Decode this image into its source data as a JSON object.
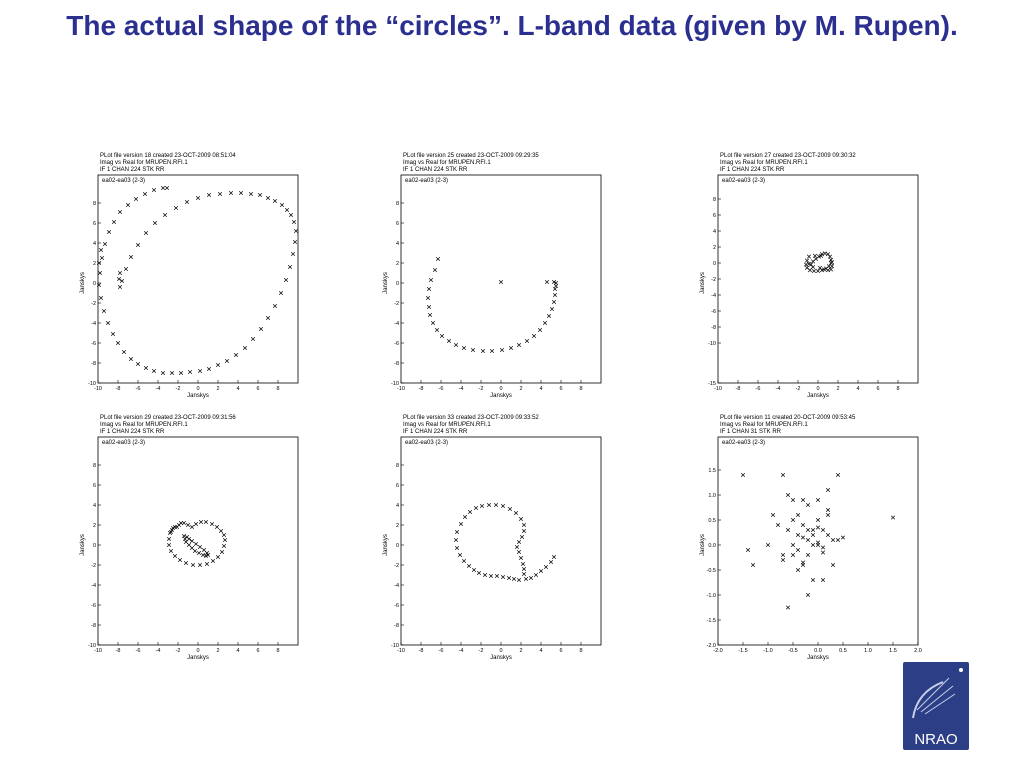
{
  "slide": {
    "title": "The actual shape of the “circles”. L-band data (given by M. Rupen)."
  },
  "logo": {
    "text": "NRAO",
    "colors": {
      "bg": "#2c3f86",
      "star": "#ffffff"
    }
  },
  "chart_data": [
    {
      "type": "scatter",
      "header": [
        "PLot file version 18  created 23-OCT-2009 08:51:04",
        "Imag vs Real  for  MRUPEN.RFI.1",
        "IF 1   CHAN 224   STK RR"
      ],
      "baseline": "ea02-ea03 (2-3)",
      "xlabel": "Janskys",
      "ylabel": "Janskys",
      "xlim": [
        -10,
        10
      ],
      "ylim": [
        -10,
        10
      ],
      "xticks": [
        -10,
        -8,
        -6,
        -4,
        -2,
        0,
        2,
        4,
        6,
        8
      ],
      "yticks": [
        8,
        6,
        4,
        2,
        0,
        -2,
        -4,
        -6,
        -8,
        -10
      ],
      "x": [
        -9.8,
        -9.9,
        -9.7,
        -9.4,
        -9.0,
        -8.5,
        -8.0,
        -7.4,
        -6.7,
        -6.0,
        -5.2,
        -4.4,
        -3.5,
        -2.6,
        -1.7,
        -0.8,
        0.2,
        1.1,
        2.0,
        2.9,
        3.8,
        4.7,
        5.5,
        6.3,
        7.0,
        7.7,
        8.3,
        8.8,
        9.2,
        9.5,
        9.7,
        9.8,
        9.6,
        9.3,
        8.9,
        8.4,
        7.7,
        7.0,
        6.2,
        5.3,
        4.3,
        3.3,
        2.2,
        1.1,
        0.0,
        -1.1,
        -2.2,
        -3.3,
        -4.3,
        -5.2,
        -6.0,
        -6.7,
        -7.2,
        -7.6,
        -7.8,
        -7.9,
        -7.8,
        -9.6,
        -9.3,
        -8.9,
        -8.4,
        -7.8,
        -7.0,
        -6.2,
        -5.3,
        -4.4,
        -3.5,
        -3.1,
        -9.7,
        -9.9
      ],
      "y": [
        1.0,
        -0.2,
        -1.5,
        -2.8,
        -4.0,
        -5.1,
        -6.0,
        -6.9,
        -7.6,
        -8.1,
        -8.5,
        -8.8,
        -9.0,
        -9.0,
        -9.0,
        -8.9,
        -8.8,
        -8.6,
        -8.2,
        -7.8,
        -7.2,
        -6.5,
        -5.6,
        -4.6,
        -3.5,
        -2.3,
        -1.0,
        0.3,
        1.6,
        2.9,
        4.1,
        5.2,
        6.1,
        6.8,
        7.3,
        7.8,
        8.2,
        8.5,
        8.8,
        8.9,
        9.0,
        9.0,
        8.9,
        8.8,
        8.5,
        8.1,
        7.5,
        6.8,
        6.0,
        5.0,
        3.8,
        2.6,
        1.4,
        0.2,
        -0.4,
        0.4,
        1.0,
        2.5,
        3.9,
        5.1,
        6.1,
        7.1,
        7.8,
        8.4,
        8.9,
        9.3,
        9.5,
        9.5,
        3.3,
        2.0
      ]
    },
    {
      "type": "scatter",
      "header": [
        "PLot file version 25  created 23-OCT-2009 09:29:35",
        "Imag vs Real  for  MRUPEN.RFI.1",
        "IF 1   CHAN 224   STK RR"
      ],
      "baseline": "ea02-ea03 (2-3)",
      "xlabel": "Janskys",
      "ylabel": "Janskys",
      "xlim": [
        -10,
        10
      ],
      "ylim": [
        -10,
        10
      ],
      "xticks": [
        -10,
        -8,
        -6,
        -4,
        -2,
        0,
        2,
        4,
        6,
        8
      ],
      "yticks": [
        8,
        6,
        4,
        2,
        0,
        -2,
        -4,
        -6,
        -8,
        -10
      ],
      "x": [
        -6.3,
        -6.6,
        -7.0,
        -7.2,
        -7.3,
        -7.2,
        -7.1,
        -6.8,
        -6.4,
        -5.9,
        -5.2,
        -4.5,
        -3.7,
        -2.8,
        -1.8,
        -0.9,
        0.1,
        1.0,
        1.8,
        2.6,
        3.3,
        3.9,
        4.4,
        4.8,
        5.1,
        5.3,
        5.4,
        5.4,
        5.5,
        5.5,
        5.3,
        4.6,
        0.0
      ],
      "y": [
        2.4,
        1.3,
        0.3,
        -0.6,
        -1.5,
        -2.4,
        -3.2,
        -4.0,
        -4.7,
        -5.3,
        -5.8,
        -6.2,
        -6.5,
        -6.7,
        -6.8,
        -6.8,
        -6.7,
        -6.5,
        -6.2,
        -5.8,
        -5.3,
        -4.7,
        -4.0,
        -3.3,
        -2.6,
        -1.9,
        -1.2,
        -0.6,
        -0.3,
        0.0,
        0.1,
        0.1,
        0.1
      ]
    },
    {
      "type": "scatter",
      "header": [
        "PLot file version 27  created 23-OCT-2009 09:30:32",
        "Imag vs Real  for  MRUPEN.RFI.1",
        "IF 1   CHAN 224   STK RR"
      ],
      "baseline": "ea02-ea03 (2-3)",
      "xlabel": "Janskys",
      "ylabel": "Janskys",
      "xlim": [
        -10,
        10
      ],
      "ylim": [
        -15,
        10
      ],
      "xticks": [
        -10,
        -8,
        -6,
        -4,
        -2,
        0,
        2,
        4,
        6,
        8
      ],
      "yticks": [
        8,
        6,
        4,
        2,
        0,
        -2,
        -4,
        -6,
        -8,
        -10,
        -15
      ],
      "x": [
        -0.9,
        -1.1,
        -1.2,
        -1.1,
        -0.8,
        -0.4,
        0.0,
        0.4,
        0.8,
        1.1,
        1.3,
        1.3,
        1.2,
        1.0,
        0.7,
        0.4,
        0.1,
        -0.2,
        -0.5,
        -0.7,
        -0.5,
        0.2,
        0.6,
        1.0,
        1.3,
        1.4,
        1.4,
        -0.9,
        -0.3,
        0.3
      ],
      "y": [
        0.8,
        0.3,
        -0.2,
        -0.6,
        -0.9,
        -1.0,
        -1.0,
        -0.9,
        -0.7,
        -0.4,
        0.0,
        0.4,
        0.8,
        1.1,
        1.2,
        1.1,
        0.8,
        0.5,
        0.2,
        -0.2,
        -0.5,
        -0.6,
        -0.8,
        -0.9,
        -0.8,
        -0.4,
        0.1,
        -0.1,
        0.9,
        0.9
      ]
    },
    {
      "type": "scatter",
      "header": [
        "PLot file version 29  created 23-OCT-2009 09:31:56",
        "Imag vs Real  for  MRUPEN.RFI.1",
        "IF 1   CHAN 224   STK RR"
      ],
      "baseline": "ea02-ea03 (2-3)",
      "xlabel": "Janskys",
      "ylabel": "Janskys",
      "xlim": [
        -10,
        10
      ],
      "ylim": [
        -10,
        10
      ],
      "xticks": [
        -10,
        -8,
        -6,
        -4,
        -2,
        0,
        2,
        4,
        6,
        8
      ],
      "yticks": [
        8,
        6,
        4,
        2,
        0,
        -2,
        -4,
        -6,
        -8,
        -10
      ],
      "x": [
        -2.8,
        -2.9,
        -2.9,
        -2.7,
        -2.3,
        -1.8,
        -1.2,
        -0.5,
        0.2,
        0.9,
        1.5,
        2.0,
        2.4,
        2.6,
        2.7,
        2.6,
        2.3,
        1.9,
        1.4,
        0.8,
        0.3,
        -0.2,
        -0.6,
        -1.0,
        -1.4,
        -1.7,
        -1.9,
        -2.1,
        -2.3,
        -2.5,
        -2.6,
        -2.7,
        -1.4,
        -1.1,
        -0.9,
        -0.6,
        -0.2,
        0.2,
        0.6,
        0.9,
        1.0,
        0.8,
        0.5,
        0.1,
        -0.3,
        -0.6,
        -0.9,
        -1.2,
        -1.3
      ],
      "y": [
        1.2,
        0.6,
        0.0,
        -0.6,
        -1.1,
        -1.5,
        -1.8,
        -2.0,
        -2.0,
        -1.9,
        -1.6,
        -1.2,
        -0.7,
        -0.1,
        0.5,
        1.0,
        1.4,
        1.8,
        2.1,
        2.3,
        2.3,
        2.1,
        1.8,
        2.0,
        2.2,
        2.2,
        2.0,
        1.8,
        1.8,
        1.7,
        1.5,
        1.3,
        0.9,
        0.8,
        0.6,
        0.4,
        0.1,
        -0.2,
        -0.5,
        -0.8,
        -1.0,
        -1.1,
        -1.0,
        -0.8,
        -0.6,
        -0.3,
        0.0,
        0.3,
        0.6
      ]
    },
    {
      "type": "scatter",
      "header": [
        "PLot file version 33  created 23-OCT-2009 09:33:52",
        "Imag vs Real  for  MRUPEN.RFI.1",
        "IF 1   CHAN 224   STK RR"
      ],
      "baseline": "ea02-ea03 (2-3)",
      "xlabel": "Janskys",
      "ylabel": "Janskys",
      "xlim": [
        -10,
        10
      ],
      "ylim": [
        -10,
        10
      ],
      "xticks": [
        -10,
        -8,
        -6,
        -4,
        -2,
        0,
        2,
        4,
        6,
        8
      ],
      "yticks": [
        8,
        6,
        4,
        2,
        0,
        -2,
        -4,
        -6,
        -8,
        -10
      ],
      "x": [
        -4.0,
        -3.6,
        -3.1,
        -2.5,
        -1.9,
        -1.2,
        -0.5,
        0.2,
        0.9,
        1.5,
        2.0,
        2.3,
        2.3,
        2.1,
        1.8,
        1.6,
        1.8,
        2.0,
        2.2,
        2.3,
        2.3,
        2.5,
        3.0,
        3.5,
        4.0,
        4.5,
        5.0,
        5.3,
        -4.4,
        -4.5,
        -4.4,
        -4.1,
        -3.7,
        -3.2,
        -2.7,
        -2.2,
        -1.6,
        -1.0,
        -0.4,
        0.2,
        0.8,
        1.3,
        1.8
      ],
      "y": [
        2.1,
        2.8,
        3.3,
        3.7,
        3.9,
        4.0,
        4.0,
        3.9,
        3.6,
        3.2,
        2.6,
        2.0,
        1.4,
        0.8,
        0.3,
        -0.2,
        -0.7,
        -1.3,
        -1.9,
        -2.4,
        -2.9,
        -3.4,
        -3.3,
        -3.0,
        -2.6,
        -2.2,
        -1.7,
        -1.2,
        1.3,
        0.5,
        -0.3,
        -1.0,
        -1.6,
        -2.1,
        -2.5,
        -2.8,
        -3.0,
        -3.1,
        -3.1,
        -3.2,
        -3.3,
        -3.4,
        -3.5
      ]
    },
    {
      "type": "scatter",
      "header": [
        "PLot file version 11  created 20-OCT-2009 09:53:45",
        "Imag vs Real  for  MRUPEN.RFI.1",
        "IF 1   CHAN 31    STK RR"
      ],
      "baseline": "ea02-ea03 (2-3)",
      "xlabel": "Janskys",
      "ylabel": "Janskys",
      "xlim": [
        -2.0,
        2.0
      ],
      "ylim": [
        -2.0,
        2.0
      ],
      "xticks": [
        -2.0,
        -1.5,
        -1.0,
        -0.5,
        0.0,
        0.5,
        1.0,
        1.5,
        2.0
      ],
      "yticks": [
        1.5,
        1.0,
        0.5,
        0.0,
        -0.5,
        -1.0,
        -1.5,
        -2.0
      ],
      "x": [
        -1.5,
        -0.7,
        -0.3,
        0.4,
        -1.4,
        -1.3,
        -0.6,
        -0.5,
        0.0,
        0.2,
        1.5,
        -0.9,
        -0.5,
        -0.3,
        -0.2,
        -0.1,
        0.0,
        0.1,
        0.2,
        0.3,
        -0.4,
        -0.3,
        -0.2,
        -0.1,
        0.0,
        0.1,
        -0.5,
        -0.4,
        -0.2,
        0.0,
        0.2,
        0.4,
        0.5,
        -0.7,
        -0.6,
        -0.4,
        -0.2,
        0.0,
        -0.3,
        -0.1,
        0.1,
        0.3,
        -0.8,
        -0.5,
        -0.3,
        0.1,
        -1.0,
        -0.7,
        -0.4,
        -0.1,
        0.2,
        -0.2,
        -0.6
      ],
      "y": [
        1.4,
        1.4,
        0.9,
        1.4,
        -0.1,
        -0.4,
        1.0,
        0.9,
        0.9,
        1.1,
        0.55,
        0.6,
        0.5,
        0.4,
        0.3,
        0.3,
        0.35,
        0.3,
        0.2,
        0.1,
        0.2,
        0.15,
        0.1,
        0.0,
        0.05,
        -0.05,
        0.0,
        -0.1,
        -0.2,
        0.5,
        0.7,
        0.1,
        0.15,
        -0.2,
        0.3,
        0.6,
        0.8,
        0.0,
        -0.4,
        -0.7,
        -0.7,
        -0.4,
        0.4,
        -0.2,
        -0.35,
        -0.15,
        0.0,
        -0.3,
        -0.5,
        0.2,
        0.6,
        -1.0,
        -1.25
      ]
    }
  ]
}
